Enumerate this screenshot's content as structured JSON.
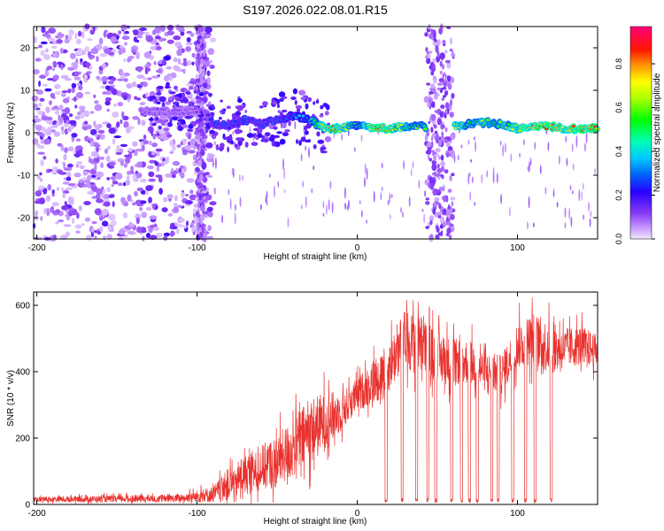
{
  "chart_data": [
    {
      "type": "heatmap",
      "title": "S197.2026.022.08.01.R15",
      "xlabel": "Height of straight line (km)",
      "ylabel": "Frequency (Hz)",
      "xlim": [
        -202,
        150
      ],
      "ylim": [
        -25,
        25
      ],
      "xticks": [
        -200,
        -100,
        0,
        100
      ],
      "yticks": [
        -20,
        -10,
        0,
        10,
        20
      ],
      "colorbar": {
        "label": "Normalized spectral amplitude",
        "ticks": [
          0.0,
          0.2,
          0.4,
          0.6,
          0.8
        ],
        "range": [
          0,
          0.97
        ]
      },
      "ridge": {
        "description": "dominant frequency track",
        "x": [
          -95,
          -90,
          -80,
          -70,
          -60,
          -50,
          -40,
          -30,
          -20,
          -10,
          0,
          10,
          20,
          30,
          40,
          60,
          70,
          80,
          90,
          100,
          110,
          120,
          130,
          140,
          150
        ],
        "freq": [
          5,
          2,
          1.5,
          3,
          2,
          3,
          4,
          3,
          1,
          1,
          2,
          1,
          1,
          1.5,
          1.5,
          1.5,
          2,
          2.5,
          2,
          1,
          1.5,
          1.5,
          1,
          1,
          1
        ],
        "amplitude": [
          0.15,
          0.3,
          0.3,
          0.35,
          0.3,
          0.35,
          0.4,
          0.45,
          0.9,
          0.9,
          0.5,
          0.95,
          0.9,
          0.7,
          0.6,
          0.85,
          0.6,
          0.7,
          0.65,
          0.8,
          0.9,
          0.95,
          0.9,
          0.95,
          0.95
        ]
      },
      "gaps": [
        [
          -100,
          -95
        ],
        [
          43,
          60
        ]
      ]
    },
    {
      "type": "line",
      "xlabel": "Height of straight line (km)",
      "ylabel": "SNR (10 * v/v)",
      "xlim": [
        -202,
        150
      ],
      "ylim": [
        0,
        640
      ],
      "xticks": [
        -200,
        -100,
        0,
        100
      ],
      "yticks": [
        0,
        200,
        400,
        600
      ],
      "color": "#e8322e",
      "envelope": {
        "x": [
          -202,
          -110,
          -90,
          -80,
          -70,
          -60,
          -50,
          -40,
          -30,
          -20,
          -10,
          0,
          10,
          20,
          30,
          40,
          50,
          60,
          70,
          80,
          90,
          100,
          110,
          120,
          130,
          140,
          150
        ],
        "mean": [
          15,
          18,
          30,
          60,
          90,
          110,
          130,
          170,
          220,
          250,
          280,
          330,
          370,
          420,
          500,
          480,
          440,
          430,
          430,
          400,
          390,
          480,
          500,
          470,
          470,
          480,
          460
        ],
        "spread": [
          8,
          12,
          25,
          50,
          60,
          70,
          80,
          90,
          100,
          90,
          60,
          50,
          70,
          80,
          90,
          90,
          80,
          70,
          70,
          60,
          60,
          70,
          80,
          80,
          60,
          60,
          50
        ]
      },
      "dropouts_km": [
        18,
        28,
        37,
        44,
        49,
        59,
        65,
        70,
        75,
        84,
        88,
        97,
        105,
        111,
        121
      ]
    }
  ]
}
